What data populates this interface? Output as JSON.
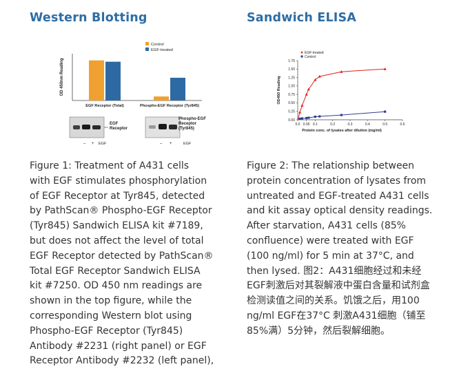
{
  "left": {
    "heading": "Western Blotting",
    "chart_data": {
      "type": "bar",
      "ylabel": "OD 450nm Reading",
      "categories": [
        "EGF Receptor (Total)",
        "Phospho-EGF Receptor (Tyr845)"
      ],
      "series": [
        {
          "name": "Control",
          "color": "#f0a030",
          "values": [
            3.0,
            0.3
          ]
        },
        {
          "name": "EGF-treated",
          "color": "#2d6aa3",
          "values": [
            2.9,
            1.7
          ]
        }
      ],
      "ylim": [
        0,
        3.5
      ],
      "legend": "top-right"
    },
    "blots": {
      "left_label": "EGF\nReceptor",
      "right_label": "Phospho-EGF\nReceptor\n(Tyr845)",
      "lane_minus": "–",
      "lane_plus": "+",
      "treatment": "EGF"
    },
    "caption_lines": [
      "Figure 1: Treatment of A431 cells",
      "with EGF stimulates phosphorylation",
      "of EGF Receptor at Tyr845, detected",
      "by PathScan® Phospho-EGF Receptor",
      "(Tyr845) Sandwich ELISA kit #7189,",
      "but does not affect the level of total",
      "EGF Receptor detected by PathScan®",
      "Total EGF Receptor Sandwich ELISA",
      "kit #7250. OD 450 nm readings are",
      "shown in the top figure, while the",
      "corresponding Western blot using",
      "Phospho-EGF Receptor (Tyr845)",
      "Antibody #2231 (right panel) or EGF",
      "Receptor Antibody #2232 (left panel),"
    ]
  },
  "right": {
    "heading": "Sandwich ELISA",
    "chart_data": {
      "type": "line",
      "xlabel": "Protein conc. of lysates after dilution (mg/ml)",
      "ylabel": "OD450 Reading",
      "xlim": [
        0,
        0.6
      ],
      "ylim": [
        0,
        1.75
      ],
      "xticks": [
        "0.0",
        "0.1",
        "0.2",
        "0.3",
        "0.4",
        "0.5",
        "0.6"
      ],
      "xticks_minor": [
        "0.05"
      ],
      "yticks": [
        "0.00",
        "0.25",
        "0.50",
        "0.75",
        "1.00",
        "1.25",
        "1.50",
        "1.75"
      ],
      "series": [
        {
          "name": "EGF-treated",
          "color": "#e0201b",
          "marker": "triangle",
          "x": [
            0.0125,
            0.025,
            0.05,
            0.0625,
            0.1,
            0.125,
            0.25,
            0.5
          ],
          "y": [
            0.22,
            0.42,
            0.75,
            0.9,
            1.18,
            1.28,
            1.42,
            1.5
          ]
        },
        {
          "name": "Control",
          "color": "#2d3f8f",
          "marker": "square",
          "x": [
            0.0125,
            0.025,
            0.05,
            0.0625,
            0.1,
            0.125,
            0.25,
            0.5
          ],
          "y": [
            0.03,
            0.04,
            0.05,
            0.06,
            0.09,
            0.1,
            0.14,
            0.24
          ]
        }
      ],
      "legend": "top-left"
    },
    "caption_lines": [
      "Figure 2: The relationship between",
      "protein concentration of lysates from",
      "untreated and EGF-treated A431 cells",
      "and kit assay optical density readings.",
      "After starvation, A431 cells (85%",
      "confluence) were treated with EGF",
      "(100 ng/ml) for 5 min at 37°C, and",
      "then lysed. 图2：A431细胞经过和未经",
      "EGF刺激后对其裂解液中蛋白含量和试剂盒",
      "检测读值之间的关系。饥饿之后，用100",
      "ng/ml EGF在37°C 刺激A431细胞（铺至",
      "85%满）5分钟，然后裂解细胞。"
    ]
  }
}
